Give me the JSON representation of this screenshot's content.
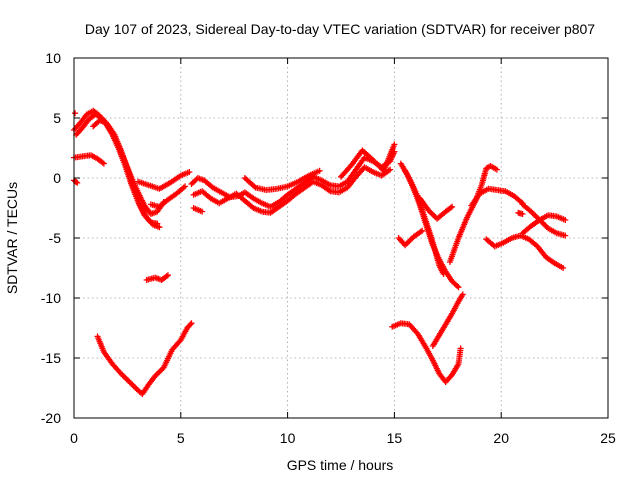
{
  "chart_data": {
    "type": "scatter",
    "title": "Day 107 of 2023, Sidereal Day-to-day VTEC variation (SDTVAR) for receiver p807",
    "xlabel": "GPS time / hours",
    "ylabel": "SDTVAR / TECUs",
    "xlim": [
      0,
      25
    ],
    "ylim": [
      -20,
      10
    ],
    "xticks": [
      0,
      5,
      10,
      15,
      20,
      25
    ],
    "yticks": [
      -20,
      -15,
      -10,
      -5,
      0,
      5,
      10
    ],
    "xtick_labels": [
      "0",
      "5",
      "10",
      "15",
      "20",
      "25"
    ],
    "ytick_labels": [
      "-20",
      "-15",
      "-10",
      "-5",
      "0",
      "5",
      "10"
    ],
    "grid": true,
    "marker": "plus",
    "color": "#ff0000",
    "series": [
      {
        "values": [
          [
            0.0,
            4.0
          ],
          [
            0.3,
            4.6
          ],
          [
            0.6,
            5.3
          ],
          [
            0.9,
            5.6
          ],
          [
            1.2,
            5.2
          ],
          [
            1.5,
            4.5
          ],
          [
            1.8,
            3.6
          ],
          [
            2.1,
            2.4
          ],
          [
            2.4,
            1.0
          ],
          [
            2.7,
            -0.6
          ],
          [
            3.0,
            -2.0
          ],
          [
            3.3,
            -3.1
          ],
          [
            3.6,
            -3.7
          ],
          [
            3.9,
            -3.8
          ]
        ]
      },
      {
        "values": [
          [
            0.1,
            3.6
          ],
          [
            0.4,
            4.2
          ],
          [
            0.7,
            4.9
          ],
          [
            1.0,
            5.3
          ],
          [
            1.3,
            5.0
          ],
          [
            1.6,
            4.4
          ],
          [
            1.9,
            3.6
          ],
          [
            2.2,
            2.3
          ],
          [
            2.5,
            0.8
          ],
          [
            2.8,
            -0.8
          ],
          [
            3.1,
            -2.3
          ],
          [
            3.4,
            -3.3
          ],
          [
            3.7,
            -3.9
          ],
          [
            4.0,
            -4.1
          ]
        ]
      },
      {
        "values": [
          [
            0.9,
            4.3
          ],
          [
            1.2,
            4.8
          ],
          [
            1.5,
            4.6
          ],
          [
            1.8,
            3.7
          ],
          [
            2.1,
            2.6
          ],
          [
            2.4,
            1.3
          ],
          [
            2.7,
            0.0
          ],
          [
            3.0,
            -1.2
          ],
          [
            3.3,
            -2.3
          ],
          [
            3.6,
            -3.0
          ],
          [
            3.9,
            -2.8
          ],
          [
            4.2,
            -2.0
          ]
        ]
      },
      {
        "values": [
          [
            0.0,
            1.7
          ],
          [
            0.4,
            1.8
          ],
          [
            0.8,
            1.9
          ],
          [
            1.1,
            1.6
          ],
          [
            1.4,
            1.2
          ]
        ]
      },
      {
        "values": [
          [
            0.0,
            -0.2
          ],
          [
            0.15,
            -0.4
          ]
        ]
      },
      {
        "values": [
          [
            0.05,
            5.4
          ]
        ]
      },
      {
        "values": [
          [
            1.1,
            -13.2
          ],
          [
            1.4,
            -14.5
          ],
          [
            1.8,
            -15.5
          ],
          [
            2.2,
            -16.3
          ],
          [
            2.6,
            -17.0
          ],
          [
            3.0,
            -17.7
          ],
          [
            3.2,
            -18.0
          ],
          [
            3.5,
            -17.2
          ],
          [
            3.8,
            -16.5
          ],
          [
            4.2,
            -15.8
          ],
          [
            4.6,
            -14.3
          ],
          [
            5.0,
            -13.5
          ],
          [
            5.3,
            -12.5
          ],
          [
            5.5,
            -12.1
          ]
        ]
      },
      {
        "values": [
          [
            3.4,
            -8.5
          ],
          [
            3.8,
            -8.3
          ],
          [
            4.1,
            -8.5
          ],
          [
            4.4,
            -8.1
          ]
        ]
      },
      {
        "values": [
          [
            3.0,
            -0.3
          ],
          [
            3.5,
            -0.6
          ],
          [
            4.0,
            -0.9
          ],
          [
            4.5,
            -0.4
          ],
          [
            5.0,
            0.2
          ],
          [
            5.4,
            0.5
          ]
        ]
      },
      {
        "values": [
          [
            3.6,
            -2.2
          ],
          [
            4.0,
            -2.4
          ],
          [
            4.4,
            -1.8
          ],
          [
            4.8,
            -1.3
          ],
          [
            5.2,
            -0.7
          ]
        ]
      },
      {
        "values": [
          [
            5.6,
            -2.5
          ],
          [
            6.0,
            -2.8
          ]
        ]
      },
      {
        "values": [
          [
            5.5,
            -0.5
          ],
          [
            5.8,
            0.0
          ],
          [
            6.1,
            -0.2
          ],
          [
            6.5,
            -0.8
          ],
          [
            6.9,
            -1.2
          ],
          [
            7.3,
            -1.6
          ],
          [
            7.7,
            -1.5
          ],
          [
            8.0,
            -1.2
          ],
          [
            8.4,
            -1.7
          ],
          [
            8.8,
            -2.1
          ],
          [
            9.2,
            -2.4
          ],
          [
            9.6,
            -2.0
          ],
          [
            10.0,
            -1.4
          ],
          [
            10.4,
            -0.9
          ],
          [
            10.8,
            -0.4
          ],
          [
            11.2,
            0.1
          ],
          [
            11.6,
            -0.2
          ],
          [
            12.0,
            -0.6
          ],
          [
            12.4,
            -0.7
          ],
          [
            12.8,
            -0.3
          ],
          [
            13.2,
            0.7
          ],
          [
            13.6,
            1.7
          ],
          [
            14.0,
            1.4
          ],
          [
            14.4,
            0.9
          ],
          [
            14.8,
            1.4
          ],
          [
            15.0,
            2.2
          ]
        ]
      },
      {
        "values": [
          [
            5.6,
            -1.4
          ],
          [
            6.0,
            -1.1
          ],
          [
            6.4,
            -1.7
          ],
          [
            6.8,
            -2.1
          ],
          [
            7.2,
            -1.7
          ],
          [
            7.6,
            -1.3
          ],
          [
            8.0,
            -1.9
          ],
          [
            8.4,
            -2.5
          ],
          [
            8.8,
            -2.8
          ],
          [
            9.2,
            -2.9
          ],
          [
            9.6,
            -2.4
          ],
          [
            10.0,
            -1.9
          ],
          [
            10.4,
            -1.3
          ],
          [
            10.8,
            -0.8
          ],
          [
            11.2,
            -0.3
          ],
          [
            11.6,
            -0.6
          ],
          [
            12.0,
            -1.1
          ],
          [
            12.4,
            -1.2
          ],
          [
            12.8,
            -0.8
          ],
          [
            13.2,
            0.1
          ],
          [
            13.6,
            0.9
          ],
          [
            14.0,
            0.5
          ],
          [
            14.4,
            0.2
          ],
          [
            14.8,
            0.7
          ]
        ]
      },
      {
        "values": [
          [
            8.0,
            0.0
          ],
          [
            8.5,
            -0.8
          ],
          [
            9.0,
            -1.0
          ],
          [
            9.5,
            -0.9
          ],
          [
            10.0,
            -0.7
          ],
          [
            10.5,
            -0.3
          ],
          [
            11.0,
            0.2
          ],
          [
            11.5,
            0.6
          ]
        ]
      },
      {
        "values": [
          [
            12.5,
            0.1
          ],
          [
            13.0,
            1.1
          ],
          [
            13.5,
            2.3
          ],
          [
            14.0,
            1.5
          ],
          [
            14.5,
            0.6
          ],
          [
            15.0,
            2.8
          ]
        ]
      },
      {
        "values": [
          [
            15.3,
            1.2
          ],
          [
            15.6,
            0.3
          ],
          [
            15.9,
            -0.9
          ],
          [
            16.2,
            -2.3
          ],
          [
            16.5,
            -4.0
          ],
          [
            16.8,
            -5.6
          ],
          [
            17.1,
            -6.8
          ],
          [
            17.4,
            -7.8
          ],
          [
            17.7,
            -8.6
          ],
          [
            18.0,
            -9.1
          ]
        ]
      },
      {
        "values": [
          [
            15.5,
            0.6
          ],
          [
            15.8,
            -0.4
          ],
          [
            16.1,
            -1.6
          ],
          [
            16.4,
            -3.2
          ],
          [
            16.7,
            -4.8
          ],
          [
            16.9,
            -6.0
          ],
          [
            17.1,
            -7.3
          ],
          [
            17.3,
            -8.0
          ]
        ]
      },
      {
        "values": [
          [
            16.2,
            -1.7
          ],
          [
            16.6,
            -2.7
          ],
          [
            17.0,
            -3.4
          ],
          [
            17.4,
            -2.8
          ],
          [
            17.7,
            -2.4
          ]
        ]
      },
      {
        "values": [
          [
            15.2,
            -5.0
          ],
          [
            15.5,
            -5.6
          ],
          [
            15.9,
            -4.9
          ],
          [
            16.3,
            -4.4
          ]
        ]
      },
      {
        "values": [
          [
            14.9,
            -12.4
          ],
          [
            15.3,
            -12.1
          ],
          [
            15.7,
            -12.2
          ],
          [
            16.1,
            -13.0
          ],
          [
            16.5,
            -14.2
          ],
          [
            16.8,
            -15.2
          ],
          [
            17.1,
            -16.3
          ],
          [
            17.4,
            -17.0
          ],
          [
            17.7,
            -16.4
          ],
          [
            18.0,
            -15.5
          ],
          [
            18.1,
            -14.2
          ]
        ]
      },
      {
        "values": [
          [
            16.8,
            -14.0
          ],
          [
            17.1,
            -13.1
          ],
          [
            17.4,
            -12.2
          ],
          [
            17.7,
            -11.3
          ],
          [
            18.0,
            -10.3
          ],
          [
            18.2,
            -9.7
          ]
        ]
      },
      {
        "values": [
          [
            17.6,
            -7.0
          ],
          [
            18.0,
            -5.0
          ],
          [
            18.4,
            -3.3
          ],
          [
            18.8,
            -1.9
          ],
          [
            19.1,
            -0.5
          ],
          [
            19.3,
            0.8
          ],
          [
            19.5,
            1.0
          ],
          [
            19.8,
            0.7
          ]
        ]
      },
      {
        "values": [
          [
            18.6,
            -2.3
          ],
          [
            19.0,
            -1.3
          ],
          [
            19.4,
            -0.9
          ],
          [
            19.8,
            -1.0
          ],
          [
            20.2,
            -1.1
          ],
          [
            20.6,
            -1.5
          ],
          [
            21.0,
            -2.1
          ]
        ]
      },
      {
        "values": [
          [
            19.3,
            -5.1
          ],
          [
            19.7,
            -5.7
          ],
          [
            20.1,
            -5.4
          ],
          [
            20.5,
            -5.0
          ],
          [
            20.9,
            -4.8
          ],
          [
            21.3,
            -5.1
          ],
          [
            21.7,
            -5.7
          ],
          [
            22.1,
            -6.6
          ],
          [
            22.5,
            -7.1
          ],
          [
            22.9,
            -7.5
          ]
        ]
      },
      {
        "values": [
          [
            21.0,
            -2.2
          ],
          [
            21.4,
            -2.8
          ],
          [
            21.8,
            -3.5
          ],
          [
            22.2,
            -4.2
          ],
          [
            22.6,
            -4.6
          ],
          [
            23.0,
            -4.8
          ]
        ]
      },
      {
        "values": [
          [
            21.0,
            -4.6
          ],
          [
            21.4,
            -4.0
          ],
          [
            21.8,
            -3.5
          ],
          [
            22.2,
            -3.1
          ],
          [
            22.6,
            -3.2
          ],
          [
            23.0,
            -3.5
          ]
        ]
      },
      {
        "values": [
          [
            20.8,
            -2.9
          ],
          [
            21.0,
            -3.0
          ]
        ]
      }
    ]
  }
}
